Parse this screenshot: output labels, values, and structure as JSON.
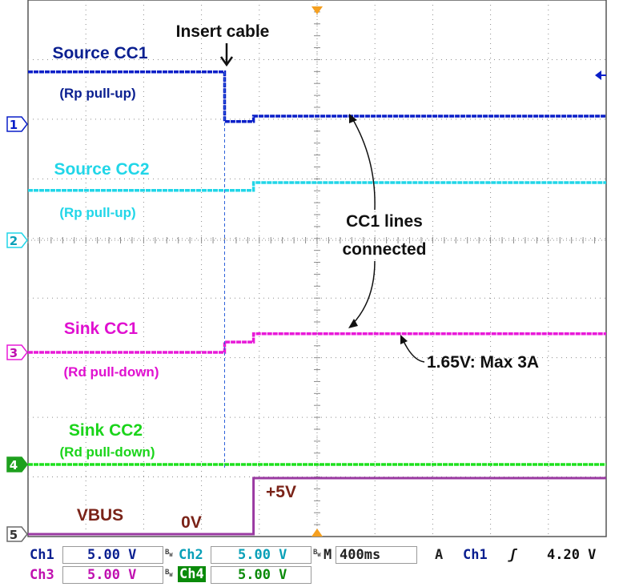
{
  "chart_data": {
    "type": "line",
    "title": "",
    "xlabel": "",
    "ylabel": "",
    "grid": true,
    "time_per_div_ms": 400,
    "series": [
      {
        "name": "Source CC1",
        "sublabel": "(Rp pull-up)",
        "color": "#0a1fc8",
        "marker": "1",
        "points": [
          [
            0.0,
            1.57
          ],
          [
            0.68,
            1.57
          ],
          [
            0.68,
            0.93
          ],
          [
            0.78,
            0.93
          ],
          [
            0.78,
            1.0
          ],
          [
            2.0,
            1.0
          ]
        ]
      },
      {
        "name": "Source CC2",
        "sublabel": "(Rp pull-up)",
        "color": "#21d6e8",
        "marker": "2",
        "points": [
          [
            0.0,
            1.55
          ],
          [
            0.78,
            1.55
          ],
          [
            0.78,
            1.65
          ],
          [
            2.0,
            1.65
          ]
        ]
      },
      {
        "name": "Sink CC1",
        "sublabel": "(Rd pull-down)",
        "color": "#e81ad8",
        "marker": "3",
        "points": [
          [
            0.0,
            0.0
          ],
          [
            0.68,
            0.0
          ],
          [
            0.68,
            0.35
          ],
          [
            0.78,
            0.35
          ],
          [
            0.78,
            0.63
          ],
          [
            2.0,
            0.63
          ]
        ]
      },
      {
        "name": "Sink CC2",
        "sublabel": "(Rd pull-down)",
        "color": "#1ee01e",
        "marker": "4",
        "points": [
          [
            0.0,
            0.0
          ],
          [
            2.0,
            0.0
          ]
        ]
      },
      {
        "name": "VBUS",
        "sublabel": "",
        "color": "#9a3aa2",
        "marker": "5",
        "points": [
          [
            0.0,
            0.0
          ],
          [
            0.78,
            0.0
          ],
          [
            0.78,
            5.0
          ],
          [
            2.0,
            5.0
          ]
        ]
      }
    ],
    "annotations": {
      "insert_cable": "Insert cable",
      "cc1_connected_line1": "CC1 lines",
      "cc1_connected_line2": "connected",
      "sink_level": "1.65V: Max 3A",
      "vbus_label": "VBUS",
      "vbus_low": "0V",
      "vbus_high": "+5V"
    },
    "trigger_level_V": 4.2
  },
  "readout": {
    "ch1_label": "Ch1",
    "ch1_value": "5.00 V",
    "ch2_label": "Ch2",
    "ch2_value": "5.00 V",
    "ch3_label": "Ch3",
    "ch3_value": "5.00 V",
    "ch4_label": "Ch4",
    "ch4_value": "5.00 V",
    "bw_mark": "B",
    "bw_sub": "W",
    "time_prefix": "M",
    "timebase": "400ms",
    "trig_mode": "A",
    "trig_source": "Ch1",
    "trig_slope": "ʃ",
    "trig_level": "4.20 V"
  },
  "colors": {
    "ch1": "#0a1fc8",
    "ch2": "#21d6e8",
    "ch3": "#e81ad8",
    "ch4": "#1ee01e",
    "vbus": "#9a3aa2",
    "grid": "#8c8c8c",
    "trigger": "#f5a020",
    "ch1_text": "#0a1f90",
    "ch3_text": "#c010b0",
    "ch2_text": "#0aa0b8",
    "ch4_text": "#0a8a0a"
  }
}
